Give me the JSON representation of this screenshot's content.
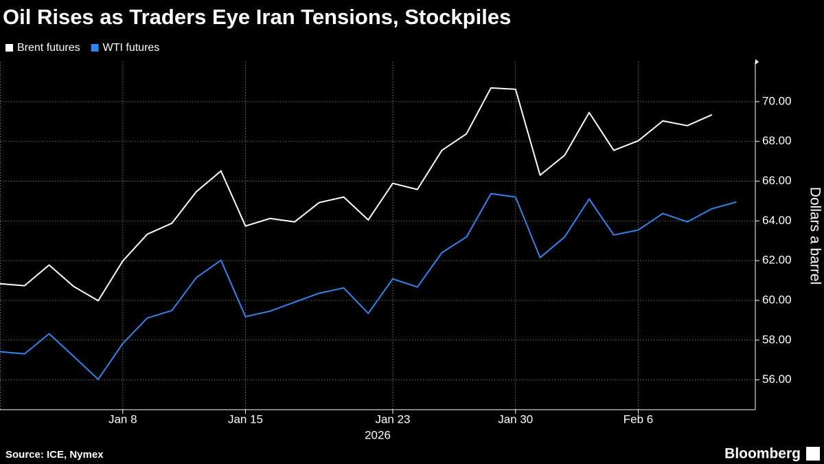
{
  "chart_data": {
    "type": "line",
    "title": "Oil Rises as Traders Eye Iran Tensions, Stockpiles",
    "categories": [
      null,
      null,
      null,
      null,
      null,
      "Jan 8",
      null,
      null,
      null,
      null,
      "Jan 15",
      null,
      null,
      null,
      null,
      null,
      "Jan 23",
      null,
      null,
      null,
      null,
      "Jan 30",
      null,
      null,
      null,
      null,
      "Feb 6",
      null,
      null,
      null,
      null
    ],
    "year_label": "2026",
    "series": [
      {
        "name": "Brent futures",
        "color": "#ffffff",
        "values": [
          60.84,
          60.74,
          61.78,
          60.7,
          59.98,
          61.98,
          63.33,
          63.88,
          65.47,
          66.51,
          63.74,
          64.12,
          63.95,
          64.92,
          65.2,
          64.05,
          65.89,
          65.58,
          67.55,
          68.38,
          70.69,
          70.62,
          66.3,
          67.3,
          69.45,
          67.55,
          68.03,
          69.03,
          68.79,
          69.34,
          null
        ]
      },
      {
        "name": "WTI futures",
        "color": "#2f86f0",
        "values": [
          57.42,
          57.31,
          58.32,
          57.18,
          56.03,
          57.83,
          59.11,
          59.49,
          61.15,
          62.02,
          59.18,
          59.46,
          59.91,
          60.36,
          60.63,
          59.35,
          61.08,
          60.67,
          62.4,
          63.19,
          65.37,
          65.2,
          62.15,
          63.19,
          65.1,
          63.29,
          63.54,
          64.37,
          63.95,
          64.61,
          64.95
        ]
      }
    ],
    "ylabel": "Dollars a barrel",
    "ylim": [
      54.5,
      72
    ],
    "yticks": [
      {
        "value": 56,
        "label": "56.00"
      },
      {
        "value": 58,
        "label": "58.00"
      },
      {
        "value": 60,
        "label": "60.00"
      },
      {
        "value": 62,
        "label": "62.00"
      },
      {
        "value": 64,
        "label": "64.00"
      },
      {
        "value": 66,
        "label": "66.00"
      },
      {
        "value": 68,
        "label": "68.00"
      },
      {
        "value": 70,
        "label": "70.00"
      }
    ],
    "grid": true,
    "source": "Source: ICE, Nymex",
    "branding": "Bloomberg"
  }
}
